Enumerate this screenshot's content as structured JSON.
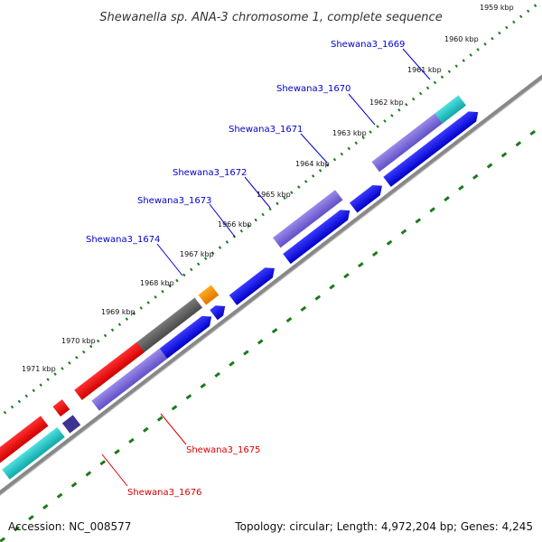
{
  "title": "Shewanella sp. ANA-3 chromosome 1, complete sequence",
  "footer": {
    "accession": "Accession: NC_008577",
    "summary": "Topology: circular; Length: 4,972,204 bp; Genes: 4,245"
  },
  "ticks": [
    "1959 kbp",
    "1960 kbp",
    "1961 kbp",
    "1962 kbp",
    "1963 kbp",
    "1964 kbp",
    "1965 kbp",
    "1966 kbp",
    "1967 kbp",
    "1968 kbp",
    "1969 kbp",
    "1970 kbp",
    "1971 kbp"
  ],
  "gene_labels": {
    "g1669": "Shewana3_1669",
    "g1670": "Shewana3_1670",
    "g1671": "Shewana3_1671",
    "g1672": "Shewana3_1672",
    "g1673": "Shewana3_1673",
    "g1674": "Shewana3_1674",
    "g1675": "Shewana3_1675",
    "g1676": "Shewana3_1676"
  },
  "colors": {
    "backbone": "#888888",
    "tick_dots": "#1a7a1a",
    "cds_blue": "#0000e6",
    "gene_purple": "#7b68d8",
    "highlight_red": "#ee0000",
    "cyan": "#1ec8c8",
    "orange": "#f08c00",
    "gray": "#606060",
    "dark_blue": "#3c3490",
    "label_blue": "#0000cc",
    "label_red": "#dd0000"
  }
}
